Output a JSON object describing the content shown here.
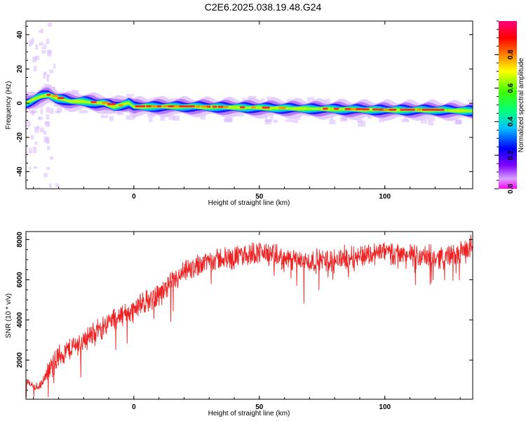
{
  "title": "C2E6.2025.038.19.48.G24",
  "chart_data": [
    {
      "type": "heatmap",
      "xlabel": "Height of straight line (km)",
      "ylabel": "Frequency (Hz)",
      "xlim": [
        -43,
        135
      ],
      "ylim": [
        -50,
        48
      ],
      "xticks": [
        0,
        50,
        100
      ],
      "yticks": [
        -40,
        -20,
        0,
        20,
        40
      ],
      "colorbar": {
        "label": "Normalized spectral amplitude",
        "range": [
          0.0,
          1.0
        ],
        "ticks": [
          0.0,
          0.2,
          0.4,
          0.6,
          0.8
        ],
        "colormap": [
          "#ff00ff",
          "#7f00ff",
          "#0000ff",
          "#00ffff",
          "#00ff00",
          "#ffff00",
          "#ff8000",
          "#ff0000",
          "#ff007f"
        ]
      },
      "ridge": {
        "x": [
          -43,
          -40,
          -37,
          -34,
          -31,
          -28,
          -25,
          -20,
          -15,
          -12,
          -8,
          -5,
          -2,
          0,
          5,
          20,
          40,
          60,
          80,
          100,
          120,
          135
        ],
        "freq": [
          0,
          2,
          4,
          5,
          3,
          2,
          1,
          1,
          0,
          0,
          -2,
          -1,
          0,
          -2,
          -2,
          -2,
          -2.5,
          -3,
          -3.5,
          -4,
          -4,
          -4.5
        ]
      }
    },
    {
      "type": "line",
      "xlabel": "Height of straight line (km)",
      "ylabel": "SNR (10 * v/v)",
      "xlim": [
        -43,
        135
      ],
      "ylim": [
        50,
        8400
      ],
      "xticks": [
        0,
        50,
        100
      ],
      "yticks": [
        2000,
        4000,
        6000,
        8000
      ],
      "color": "#ee2222",
      "trend": {
        "x": [
          -43,
          -38,
          -35,
          -30,
          -25,
          -20,
          -15,
          -10,
          -5,
          0,
          5,
          10,
          15,
          20,
          25,
          30,
          40,
          50,
          60,
          70,
          80,
          90,
          100,
          110,
          120,
          130,
          135
        ],
        "y": [
          900,
          600,
          1200,
          2200,
          2600,
          3000,
          3400,
          3900,
          4200,
          4500,
          4900,
          5300,
          5800,
          6300,
          6700,
          7000,
          7100,
          7400,
          7000,
          6900,
          7000,
          7200,
          7400,
          7200,
          7100,
          7300,
          7700
        ]
      },
      "noise_amplitude": 700
    }
  ]
}
